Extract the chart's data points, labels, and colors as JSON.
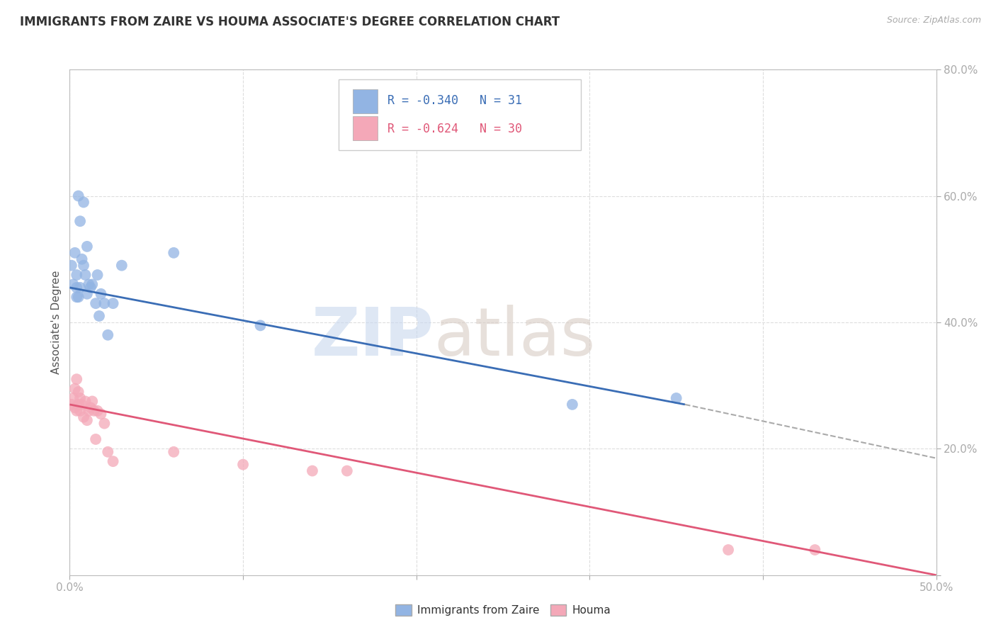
{
  "title": "IMMIGRANTS FROM ZAIRE VS HOUMA ASSOCIATE'S DEGREE CORRELATION CHART",
  "source_text": "Source: ZipAtlas.com",
  "ylabel": "Associate's Degree",
  "x_min": 0.0,
  "x_max": 0.5,
  "y_min": 0.0,
  "y_max": 0.8,
  "x_ticks": [
    0.0,
    0.1,
    0.2,
    0.3,
    0.4,
    0.5
  ],
  "y_ticks": [
    0.0,
    0.2,
    0.4,
    0.6,
    0.8
  ],
  "x_tick_labels_show": [
    "0.0%",
    "",
    "",
    "",
    "",
    "50.0%"
  ],
  "y_tick_labels_show": [
    "",
    "20.0%",
    "40.0%",
    "60.0%",
    "80.0%"
  ],
  "legend_label1": "Immigrants from Zaire",
  "legend_label2": "Houma",
  "R1": -0.34,
  "N1": 31,
  "R2": -0.624,
  "N2": 30,
  "color1": "#92b4e3",
  "color2": "#f4a8b8",
  "line_color1": "#3a6db5",
  "line_color2": "#e05878",
  "dash_color": "#aaaaaa",
  "blue_line_start_x": 0.0,
  "blue_line_start_y": 0.455,
  "blue_line_solid_end_x": 0.355,
  "blue_line_solid_end_y": 0.27,
  "blue_line_dash_end_x": 0.5,
  "blue_line_dash_end_y": 0.185,
  "pink_line_start_x": 0.0,
  "pink_line_start_y": 0.27,
  "pink_line_end_x": 0.5,
  "pink_line_end_y": 0.0,
  "blue_points_x": [
    0.001,
    0.002,
    0.003,
    0.004,
    0.004,
    0.004,
    0.005,
    0.005,
    0.006,
    0.006,
    0.007,
    0.008,
    0.008,
    0.009,
    0.01,
    0.01,
    0.011,
    0.012,
    0.013,
    0.015,
    0.016,
    0.017,
    0.018,
    0.02,
    0.022,
    0.025,
    0.03,
    0.06,
    0.11,
    0.35,
    0.29
  ],
  "blue_points_y": [
    0.49,
    0.46,
    0.51,
    0.44,
    0.455,
    0.475,
    0.44,
    0.6,
    0.455,
    0.56,
    0.5,
    0.49,
    0.59,
    0.475,
    0.52,
    0.445,
    0.46,
    0.455,
    0.46,
    0.43,
    0.475,
    0.41,
    0.445,
    0.43,
    0.38,
    0.43,
    0.49,
    0.51,
    0.395,
    0.28,
    0.27
  ],
  "pink_points_x": [
    0.001,
    0.002,
    0.003,
    0.003,
    0.004,
    0.004,
    0.005,
    0.005,
    0.006,
    0.006,
    0.007,
    0.008,
    0.009,
    0.01,
    0.011,
    0.012,
    0.013,
    0.014,
    0.015,
    0.016,
    0.018,
    0.02,
    0.022,
    0.025,
    0.06,
    0.1,
    0.14,
    0.16,
    0.38,
    0.43
  ],
  "pink_points_y": [
    0.27,
    0.28,
    0.265,
    0.295,
    0.26,
    0.31,
    0.27,
    0.29,
    0.26,
    0.28,
    0.27,
    0.25,
    0.275,
    0.245,
    0.26,
    0.265,
    0.275,
    0.26,
    0.215,
    0.26,
    0.255,
    0.24,
    0.195,
    0.18,
    0.195,
    0.175,
    0.165,
    0.165,
    0.04,
    0.04
  ]
}
